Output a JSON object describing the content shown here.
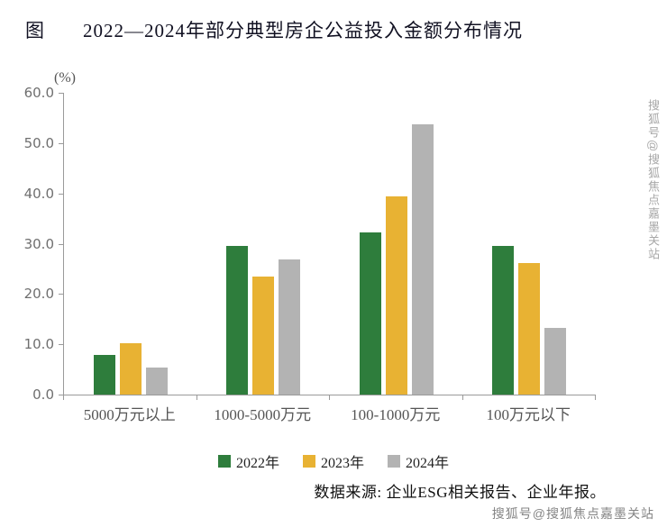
{
  "title": {
    "prefix": "图",
    "text": "2022—2024年部分典型房企公益投入金额分布情况"
  },
  "source_note": "数据来源: 企业ESG相关报告、企业年报。",
  "watermarks": {
    "top_right_vertical": "搜狐号@搜狐焦点嘉墨关站",
    "bottom_right": "搜狐号@搜狐焦点嘉墨关站"
  },
  "chart_data": {
    "type": "bar",
    "title": "2022—2024年部分典型房企公益投入金额分布情况",
    "unit_label": "(%)",
    "xlabel": "",
    "ylabel": "(%)",
    "categories": [
      "5000万元以上",
      "1000-5000万元",
      "100-1000万元",
      "100万元以下"
    ],
    "series": [
      {
        "name": "2022年",
        "color": "#2e7d3c",
        "values": [
          7.8,
          29.5,
          32.3,
          29.5
        ]
      },
      {
        "name": "2023年",
        "color": "#e8b233",
        "values": [
          10.2,
          23.5,
          39.4,
          26.2
        ]
      },
      {
        "name": "2024年",
        "color": "#b3b3b3",
        "values": [
          5.3,
          26.8,
          53.8,
          13.3
        ]
      }
    ],
    "ylim": [
      0,
      60
    ],
    "yticks": [
      0,
      10,
      20,
      30,
      40,
      50,
      60
    ],
    "ytick_labels": [
      "0.0",
      "10.0",
      "20.0",
      "30.0",
      "40.0",
      "50.0",
      "60.0"
    ],
    "grid": false,
    "legend_position": "bottom"
  }
}
